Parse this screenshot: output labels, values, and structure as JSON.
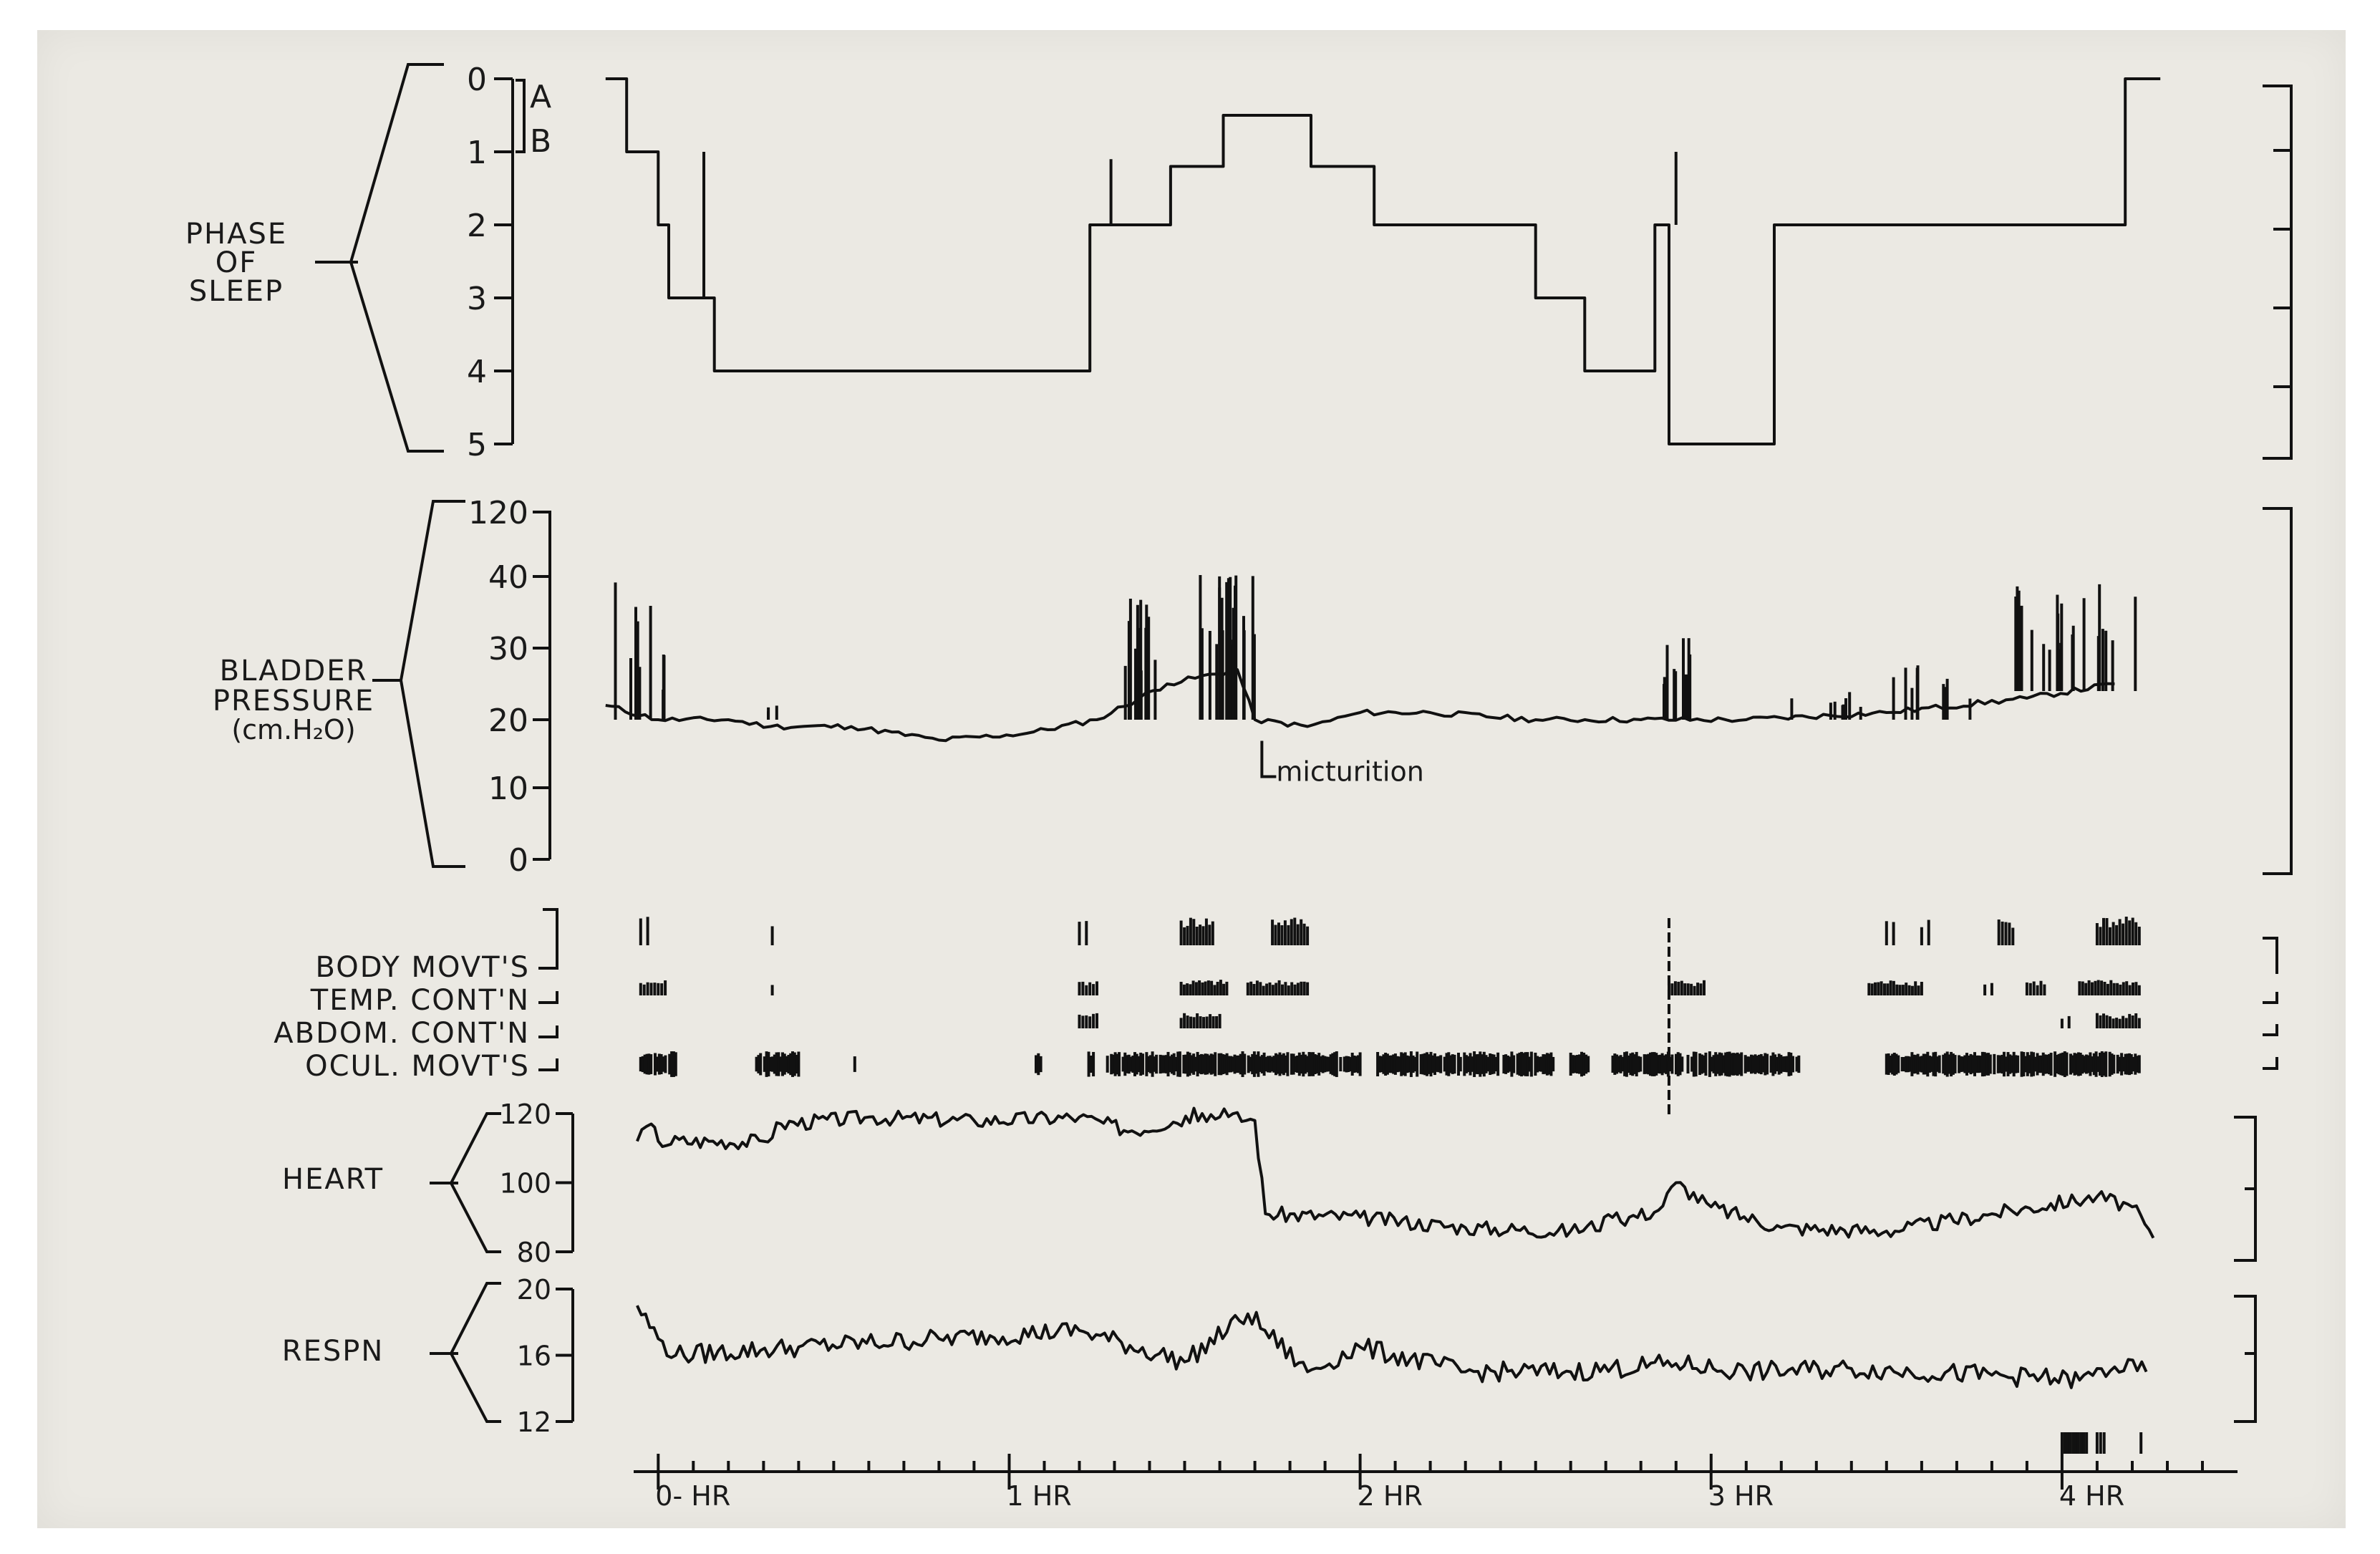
{
  "chart_data": [
    {
      "type": "line",
      "name": "sleep-phase",
      "ylabel": "PHASE OF SLEEP",
      "y_ticks": [
        "0",
        "1",
        "2",
        "3",
        "4",
        "5"
      ],
      "y_stage_labels": [
        "A",
        "B"
      ],
      "ylim": [
        0,
        5
      ],
      "invert_y": true,
      "step": true,
      "x_unit": "hours",
      "points": [
        [
          -0.15,
          0
        ],
        [
          -0.09,
          0
        ],
        [
          -0.09,
          1
        ],
        [
          0.0,
          1
        ],
        [
          0.0,
          2
        ],
        [
          0.03,
          2
        ],
        [
          0.03,
          3
        ],
        [
          0.16,
          3
        ],
        [
          0.16,
          4
        ],
        [
          1.23,
          4
        ],
        [
          1.23,
          2
        ],
        [
          1.46,
          2
        ],
        [
          1.46,
          1.2
        ],
        [
          1.61,
          1.2
        ],
        [
          1.61,
          0.5
        ],
        [
          1.86,
          0.5
        ],
        [
          1.86,
          1.2
        ],
        [
          2.04,
          1.2
        ],
        [
          2.04,
          2
        ],
        [
          2.5,
          2
        ],
        [
          2.5,
          3
        ],
        [
          2.64,
          3
        ],
        [
          2.64,
          4
        ],
        [
          2.84,
          4
        ],
        [
          2.84,
          2
        ],
        [
          2.88,
          2
        ],
        [
          2.88,
          5
        ],
        [
          3.18,
          5
        ],
        [
          3.18,
          2
        ],
        [
          4.18,
          2
        ],
        [
          4.18,
          0
        ],
        [
          4.28,
          0
        ]
      ],
      "spikes": [
        [
          0.13,
          3,
          1
        ],
        [
          1.29,
          2,
          1.1
        ],
        [
          2.9,
          2,
          1
        ]
      ]
    },
    {
      "type": "line",
      "name": "bladder-pressure",
      "ylabel": "BLADDER PRESSURE (cm.H2O)",
      "y_ticks": [
        "0",
        "10",
        "20",
        "30",
        "40",
        "120"
      ],
      "ylim": [
        0,
        120
      ],
      "x_unit": "hours",
      "points": [
        [
          -0.15,
          22
        ],
        [
          0.0,
          20
        ],
        [
          0.2,
          20
        ],
        [
          0.32,
          19
        ],
        [
          0.55,
          19
        ],
        [
          0.8,
          17
        ],
        [
          1.05,
          18
        ],
        [
          1.25,
          20
        ],
        [
          1.45,
          25
        ],
        [
          1.65,
          27
        ],
        [
          1.7,
          20
        ],
        [
          1.85,
          19
        ],
        [
          2.0,
          21
        ],
        [
          2.2,
          21
        ],
        [
          2.5,
          20
        ],
        [
          2.8,
          20
        ],
        [
          3.1,
          20
        ],
        [
          3.5,
          21
        ],
        [
          3.9,
          23
        ],
        [
          4.15,
          25
        ]
      ],
      "annotation": "micturition",
      "annotation_x": 1.72
    },
    {
      "type": "line",
      "name": "heart-rate",
      "ylabel": "HEART",
      "y_ticks": [
        "80",
        "100",
        "120"
      ],
      "ylim": [
        80,
        120
      ],
      "x_unit": "hours",
      "points": [
        [
          -0.06,
          112
        ],
        [
          -0.02,
          117
        ],
        [
          0.0,
          112
        ],
        [
          0.3,
          112
        ],
        [
          0.35,
          117
        ],
        [
          0.6,
          119
        ],
        [
          0.9,
          118
        ],
        [
          1.2,
          119
        ],
        [
          1.35,
          115
        ],
        [
          1.55,
          120
        ],
        [
          1.7,
          118
        ],
        [
          1.73,
          91
        ],
        [
          2.0,
          90
        ],
        [
          2.3,
          87
        ],
        [
          2.6,
          86
        ],
        [
          2.85,
          92
        ],
        [
          2.9,
          100
        ],
        [
          3.0,
          93
        ],
        [
          3.2,
          87
        ],
        [
          3.5,
          86
        ],
        [
          3.8,
          91
        ],
        [
          4.1,
          96
        ],
        [
          4.2,
          93
        ],
        [
          4.26,
          84
        ]
      ]
    },
    {
      "type": "line",
      "name": "respiration",
      "ylabel": "RESPN",
      "y_ticks": [
        "12",
        "16",
        "20"
      ],
      "ylim": [
        12,
        20
      ],
      "x_unit": "hours",
      "points": [
        [
          -0.06,
          19
        ],
        [
          0.0,
          17
        ],
        [
          0.05,
          16
        ],
        [
          0.4,
          16.5
        ],
        [
          0.8,
          17
        ],
        [
          1.2,
          17.5
        ],
        [
          1.5,
          15.6
        ],
        [
          1.68,
          18.5
        ],
        [
          1.85,
          15
        ],
        [
          2.0,
          16.5
        ],
        [
          2.3,
          15
        ],
        [
          2.6,
          15
        ],
        [
          2.9,
          15.5
        ],
        [
          3.1,
          15
        ],
        [
          3.4,
          15.2
        ],
        [
          3.8,
          14.8
        ],
        [
          4.05,
          14.5
        ],
        [
          4.15,
          15.3
        ],
        [
          4.24,
          15
        ]
      ]
    }
  ],
  "event_rows": [
    "BODY  MOVT'S",
    "TEMP.  CONT'N",
    "ABDOM. CONT'N",
    "OCUL.  MOVT'S"
  ],
  "x_axis": {
    "ticks": [
      "0- HR",
      "1 HR",
      "2 HR",
      "3 HR",
      "4 HR"
    ],
    "xlim": [
      -0.07,
      4.5
    ]
  }
}
